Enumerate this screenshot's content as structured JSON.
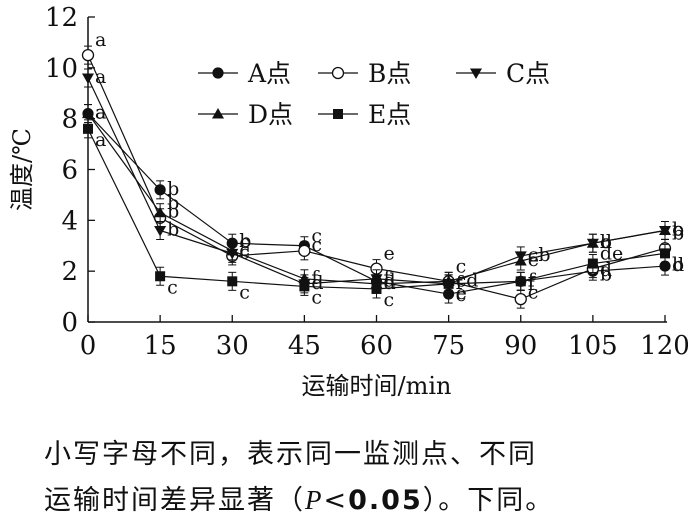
{
  "chart_data": {
    "type": "line",
    "xlabel": "运输时间/min",
    "ylabel": "温度/℃",
    "x": [
      0,
      15,
      30,
      45,
      60,
      75,
      90,
      105,
      120
    ],
    "xticks": [
      "0",
      "15",
      "30",
      "45",
      "60",
      "75",
      "90",
      "105",
      "120"
    ],
    "yticks": [
      "0",
      "2",
      "4",
      "6",
      "8",
      "10",
      "12"
    ],
    "xlim": [
      0,
      120
    ],
    "ylim": [
      0,
      12
    ],
    "grid": false,
    "legend_position": "top-center",
    "series": [
      {
        "name": "A点",
        "marker": "circle-filled",
        "values": [
          8.2,
          5.2,
          3.1,
          3.0,
          1.6,
          1.1,
          1.6,
          2.0,
          2.2
        ],
        "letters": [
          "a",
          "b",
          "c",
          "c",
          "d",
          "e",
          "f",
          "d",
          "d"
        ]
      },
      {
        "name": "B点",
        "marker": "circle-open",
        "values": [
          10.5,
          4.1,
          2.6,
          2.8,
          2.1,
          1.6,
          0.9,
          2.1,
          2.9
        ],
        "letters": [
          "a",
          "b",
          "b",
          "c",
          "e",
          "c",
          "f",
          "de",
          "b"
        ]
      },
      {
        "name": "C点",
        "marker": "triangle-down",
        "values": [
          9.6,
          3.6,
          2.7,
          1.5,
          1.7,
          1.5,
          2.6,
          3.1,
          3.6
        ],
        "letters": [
          "a",
          "b",
          "c",
          "d",
          "f",
          "f",
          "cb",
          "b",
          "c"
        ]
      },
      {
        "name": "D点",
        "marker": "triangle-up",
        "values": [
          8.2,
          4.3,
          2.8,
          1.7,
          1.5,
          1.6,
          2.4,
          3.1,
          3.6
        ],
        "letters": [
          "a",
          "b",
          "c",
          "f",
          "d",
          "cd",
          "e",
          "d",
          "b"
        ]
      },
      {
        "name": "E点",
        "marker": "square",
        "values": [
          7.6,
          1.8,
          1.6,
          1.4,
          1.3,
          1.5,
          1.6,
          2.3,
          2.7
        ],
        "letters": [
          "a",
          "c",
          "c",
          "c",
          "c",
          "c",
          "c",
          "b",
          "b"
        ]
      }
    ]
  },
  "caption": {
    "line1": "小写字母不同，表示同一监测点、不同",
    "line2_prefix": "运输时间差异显著（",
    "line2_p": "P",
    "line2_lt": "<",
    "line2_value": "0.05",
    "line2_suffix": "）。下同。"
  }
}
